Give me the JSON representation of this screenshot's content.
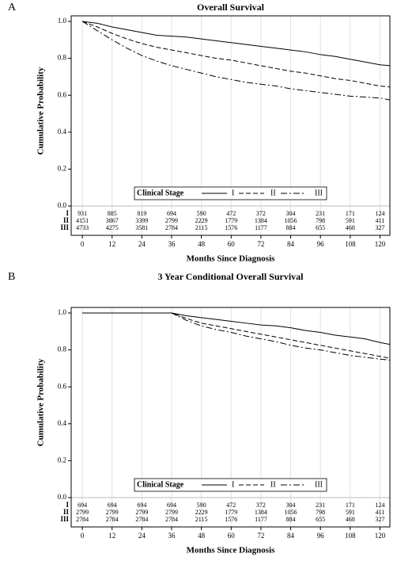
{
  "chart_data": [
    {
      "type": "line",
      "panel": "A",
      "title": "Overall Survival",
      "ylabel": "Cumulative Probability",
      "xlabel": "Months Since Diagnosis",
      "x": [
        0,
        6,
        12,
        18,
        24,
        30,
        36,
        42,
        48,
        54,
        60,
        66,
        72,
        78,
        84,
        90,
        96,
        102,
        108,
        114,
        120,
        124
      ],
      "series": [
        {
          "name": "I",
          "color": "#000000",
          "dash": "solid",
          "values": [
            1.0,
            0.99,
            0.97,
            0.955,
            0.94,
            0.925,
            0.92,
            0.915,
            0.905,
            0.895,
            0.885,
            0.875,
            0.865,
            0.855,
            0.845,
            0.835,
            0.82,
            0.81,
            0.795,
            0.78,
            0.765,
            0.76
          ]
        },
        {
          "name": "II",
          "color": "#000000",
          "dash": "dashed",
          "values": [
            1.0,
            0.97,
            0.935,
            0.905,
            0.88,
            0.86,
            0.845,
            0.83,
            0.815,
            0.8,
            0.79,
            0.775,
            0.76,
            0.745,
            0.73,
            0.72,
            0.705,
            0.69,
            0.68,
            0.665,
            0.65,
            0.645
          ]
        },
        {
          "name": "III",
          "color": "#000000",
          "dash": "dashdot",
          "values": [
            1.0,
            0.95,
            0.9,
            0.855,
            0.815,
            0.785,
            0.76,
            0.74,
            0.72,
            0.7,
            0.685,
            0.67,
            0.66,
            0.65,
            0.635,
            0.625,
            0.615,
            0.605,
            0.595,
            0.59,
            0.585,
            0.575
          ]
        }
      ],
      "xlim": [
        -4.5,
        124
      ],
      "ylim": [
        0,
        1.03
      ],
      "xticks": [
        0,
        12,
        24,
        36,
        48,
        60,
        72,
        84,
        96,
        108,
        120
      ],
      "yticks": [
        {
          "value": 0,
          "label": "0.0"
        },
        0.2,
        0.4,
        0.6,
        0.8,
        {
          "value": 1,
          "label": "1.0"
        }
      ],
      "grid": true,
      "legend_title": "Clinical Stage",
      "legend_loc": "lower center",
      "risk_table": [
        [
          931,
          885,
          819,
          694,
          590,
          472,
          372,
          304,
          231,
          171,
          124
        ],
        [
          4151,
          3867,
          3399,
          2799,
          2229,
          1779,
          1384,
          1056,
          798,
          591,
          411
        ],
        [
          4733,
          4275,
          3581,
          2784,
          2115,
          1576,
          1177,
          884,
          655,
          468,
          327
        ]
      ]
    },
    {
      "type": "line",
      "panel": "B",
      "title": "3 Year Conditional Overall Survival",
      "ylabel": "Cumulative Probability",
      "xlabel": "Months Since Diagnosis",
      "x": [
        0,
        6,
        12,
        18,
        24,
        30,
        36,
        42,
        48,
        54,
        60,
        66,
        72,
        78,
        84,
        90,
        96,
        102,
        108,
        114,
        120,
        124
      ],
      "series": [
        {
          "name": "I",
          "color": "#000000",
          "dash": "solid",
          "values": [
            1.0,
            1.0,
            1.0,
            1.0,
            1.0,
            1.0,
            1.0,
            0.985,
            0.975,
            0.965,
            0.955,
            0.945,
            0.935,
            0.93,
            0.92,
            0.905,
            0.895,
            0.88,
            0.87,
            0.86,
            0.84,
            0.83
          ]
        },
        {
          "name": "II",
          "color": "#000000",
          "dash": "dashed",
          "values": [
            1.0,
            1.0,
            1.0,
            1.0,
            1.0,
            1.0,
            1.0,
            0.97,
            0.945,
            0.93,
            0.915,
            0.9,
            0.885,
            0.87,
            0.855,
            0.84,
            0.825,
            0.81,
            0.795,
            0.78,
            0.765,
            0.755
          ]
        },
        {
          "name": "III",
          "color": "#000000",
          "dash": "dashdot",
          "values": [
            1.0,
            1.0,
            1.0,
            1.0,
            1.0,
            1.0,
            1.0,
            0.96,
            0.93,
            0.91,
            0.895,
            0.875,
            0.86,
            0.845,
            0.825,
            0.81,
            0.8,
            0.785,
            0.77,
            0.76,
            0.75,
            0.745
          ]
        }
      ],
      "xlim": [
        -4.5,
        124
      ],
      "ylim": [
        0,
        1.03
      ],
      "xticks": [
        0,
        12,
        24,
        36,
        48,
        60,
        72,
        84,
        96,
        108,
        120
      ],
      "yticks": [
        {
          "value": 0,
          "label": "0.0"
        },
        0.2,
        0.4,
        0.6,
        0.8,
        {
          "value": 1,
          "label": "1.0"
        }
      ],
      "grid": true,
      "legend_title": "Clinical Stage",
      "legend_loc": "lower center",
      "risk_table": [
        [
          694,
          694,
          694,
          694,
          590,
          472,
          372,
          304,
          231,
          171,
          124
        ],
        [
          2799,
          2799,
          2799,
          2799,
          2229,
          1779,
          1384,
          1056,
          798,
          591,
          411
        ],
        [
          2784,
          2784,
          2784,
          2784,
          2115,
          1576,
          1177,
          884,
          655,
          468,
          327
        ]
      ]
    }
  ]
}
